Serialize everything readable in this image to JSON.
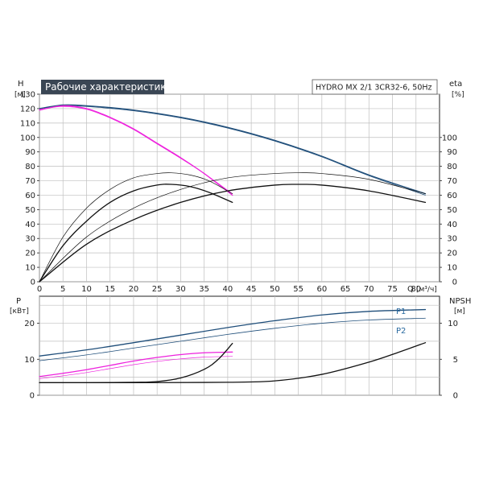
{
  "chart_data": [
    {
      "panel": "upper",
      "type": "line",
      "title": "Рабочие характеристики",
      "model": "HYDRO MX 2/1 3CR32-6, 50Hz",
      "xlabel": "Q",
      "xunit": "[м³/ч]",
      "ylabel": "H",
      "yunit": "[м]",
      "y2label": "eta",
      "y2unit": "[%]",
      "xlim": [
        0,
        85
      ],
      "ylim": [
        0,
        130
      ],
      "xticks": [
        0,
        5,
        10,
        15,
        20,
        25,
        30,
        35,
        40,
        45,
        50,
        55,
        60,
        65,
        70,
        75,
        80
      ],
      "yticks": [
        0,
        10,
        20,
        30,
        40,
        50,
        60,
        70,
        80,
        90,
        100,
        110,
        120,
        130
      ],
      "y2ticks": [
        0,
        10,
        20,
        30,
        40,
        50,
        60,
        70,
        80,
        90,
        100
      ],
      "grid": true,
      "colors": {
        "head_two_pumps": "#1f4e7a",
        "head_one_pump": "#ee22dd",
        "eta": "#111111"
      },
      "series": [
        {
          "axis": "H",
          "color": "#1f4e7a",
          "width": 1.3,
          "x": [
            0,
            5,
            10,
            20,
            30,
            40,
            50,
            60,
            70,
            82
          ],
          "y": [
            120,
            122.5,
            122,
            119,
            114,
            107,
            98,
            87,
            74,
            61
          ]
        },
        {
          "axis": "H",
          "color": "#1f4e7a",
          "width": 0.7,
          "x": [
            0,
            5,
            10,
            20,
            30,
            40,
            50,
            60,
            70,
            82
          ],
          "y": [
            120,
            122,
            121.5,
            118.5,
            113.5,
            106.5,
            97.5,
            86.5,
            73.5,
            60
          ]
        },
        {
          "axis": "H",
          "color": "#ee22dd",
          "width": 1.3,
          "x": [
            0,
            5,
            10,
            15,
            20,
            25,
            30,
            35,
            41
          ],
          "y": [
            119,
            122,
            120,
            114,
            106,
            96,
            86,
            75,
            60
          ]
        },
        {
          "axis": "H",
          "color": "#ee22dd",
          "width": 0.7,
          "x": [
            0,
            5,
            10,
            15,
            20,
            25,
            30,
            35,
            41
          ],
          "y": [
            119.5,
            121.5,
            119.5,
            113.5,
            105.5,
            95.5,
            85.5,
            75,
            61
          ]
        },
        {
          "axis": "eta",
          "color": "#111111",
          "width": 0.7,
          "x": [
            0,
            5,
            10,
            15,
            20,
            25,
            28,
            32,
            36,
            41
          ],
          "y": [
            0,
            31,
            51,
            64,
            72,
            75,
            75.5,
            74,
            70,
            61
          ]
        },
        {
          "axis": "eta",
          "color": "#111111",
          "width": 1.3,
          "x": [
            0,
            5,
            10,
            15,
            20,
            25,
            28,
            32,
            36,
            41
          ],
          "y": [
            0,
            25,
            42,
            55,
            63,
            67,
            67.5,
            66,
            62,
            55
          ]
        },
        {
          "axis": "eta",
          "color": "#111111",
          "width": 0.7,
          "x": [
            0,
            10,
            20,
            30,
            40,
            50,
            55,
            60,
            70,
            82
          ],
          "y": [
            0,
            31,
            51,
            64,
            72,
            75,
            75.5,
            75,
            71,
            61
          ]
        },
        {
          "axis": "eta",
          "color": "#111111",
          "width": 1.3,
          "x": [
            0,
            10,
            20,
            30,
            40,
            50,
            55,
            60,
            70,
            82
          ],
          "y": [
            0,
            26,
            43,
            55,
            63,
            67,
            67.5,
            67,
            63,
            55
          ]
        }
      ]
    },
    {
      "panel": "lower",
      "type": "line",
      "ylabel": "P",
      "yunit": "[кВт]",
      "y2label": "NPSH",
      "y2unit": "[м]",
      "xlim": [
        0,
        85
      ],
      "ylim": [
        0,
        27.5
      ],
      "yticks": [
        0,
        10,
        20
      ],
      "y2ticks": [
        0,
        5,
        10
      ],
      "y2lim": [
        0,
        13.75
      ],
      "grid": true,
      "colors": {
        "power_two_pumps": "#1f4e7a",
        "power_one_pump": "#ee22dd",
        "npsh": "#111111"
      },
      "curve_labels": [
        "P1",
        "P2"
      ],
      "series": [
        {
          "axis": "P",
          "color": "#1f4e7a",
          "width": 1.3,
          "x": [
            0,
            10,
            20,
            30,
            40,
            50,
            60,
            70,
            82
          ],
          "y": [
            10.9,
            12.6,
            14.6,
            16.7,
            18.8,
            20.7,
            22.3,
            23.3,
            23.8
          ]
        },
        {
          "axis": "P",
          "color": "#1f4e7a",
          "width": 0.8,
          "x": [
            0,
            10,
            20,
            30,
            40,
            50,
            60,
            70,
            82
          ],
          "y": [
            9.6,
            11.2,
            13.1,
            15.0,
            16.9,
            18.6,
            20.0,
            20.9,
            21.4
          ]
        },
        {
          "axis": "P",
          "color": "#ee22dd",
          "width": 1.3,
          "x": [
            0,
            5,
            10,
            15,
            20,
            25,
            30,
            35,
            41
          ],
          "y": [
            5.2,
            6.1,
            7.1,
            8.3,
            9.5,
            10.5,
            11.3,
            11.8,
            12.0
          ]
        },
        {
          "axis": "P",
          "color": "#ee22dd",
          "width": 0.7,
          "x": [
            0,
            5,
            10,
            15,
            20,
            25,
            30,
            35,
            41
          ],
          "y": [
            4.6,
            5.4,
            6.3,
            7.4,
            8.5,
            9.4,
            10.1,
            10.6,
            10.8
          ]
        },
        {
          "axis": "NPSH",
          "color": "#111111",
          "width": 1.3,
          "x": [
            0,
            10,
            20,
            25,
            30,
            35,
            38,
            41
          ],
          "y": [
            1.75,
            1.75,
            1.8,
            1.9,
            2.4,
            3.6,
            5.0,
            7.2
          ]
        },
        {
          "axis": "NPSH",
          "color": "#111111",
          "width": 1.3,
          "x": [
            0,
            20,
            40,
            50,
            60,
            70,
            76,
            82
          ],
          "y": [
            1.75,
            1.75,
            1.8,
            2.0,
            2.9,
            4.6,
            5.9,
            7.3
          ]
        }
      ]
    }
  ]
}
